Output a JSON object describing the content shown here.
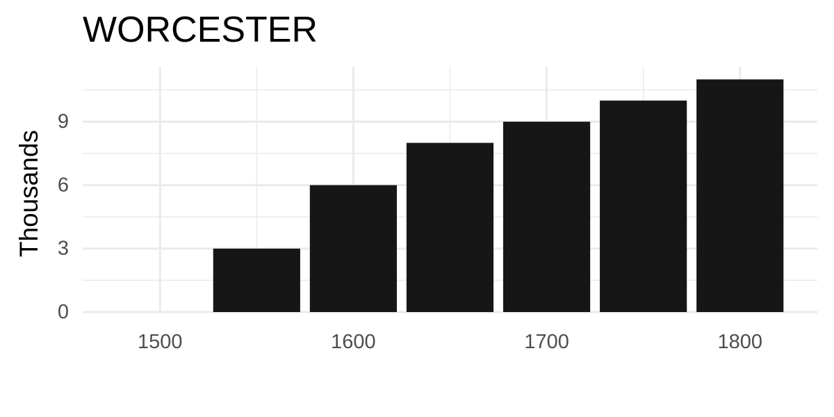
{
  "chart_data": {
    "type": "bar",
    "title": "WORCESTER",
    "xlabel": "",
    "ylabel": "Thousands",
    "x": [
      1550,
      1600,
      1650,
      1700,
      1750,
      1800
    ],
    "values": [
      3,
      6,
      8,
      9,
      10,
      11
    ],
    "xlim": [
      1460,
      1840
    ],
    "ylim": [
      0,
      11.6
    ],
    "x_ticks": [
      1500,
      1600,
      1700,
      1800
    ],
    "x_tick_labels": [
      "1500",
      "1600",
      "1700",
      "1800"
    ],
    "y_ticks": [
      0,
      3,
      6,
      9
    ],
    "y_tick_labels": [
      "0",
      "3",
      "6",
      "9"
    ],
    "bar_width": 45,
    "grid": true,
    "legend": "none",
    "colors": {
      "bar": "#161616",
      "grid": "#ebebeb",
      "tick_text": "#4d4d4d",
      "title_text": "#000000",
      "background": "#ffffff"
    }
  }
}
